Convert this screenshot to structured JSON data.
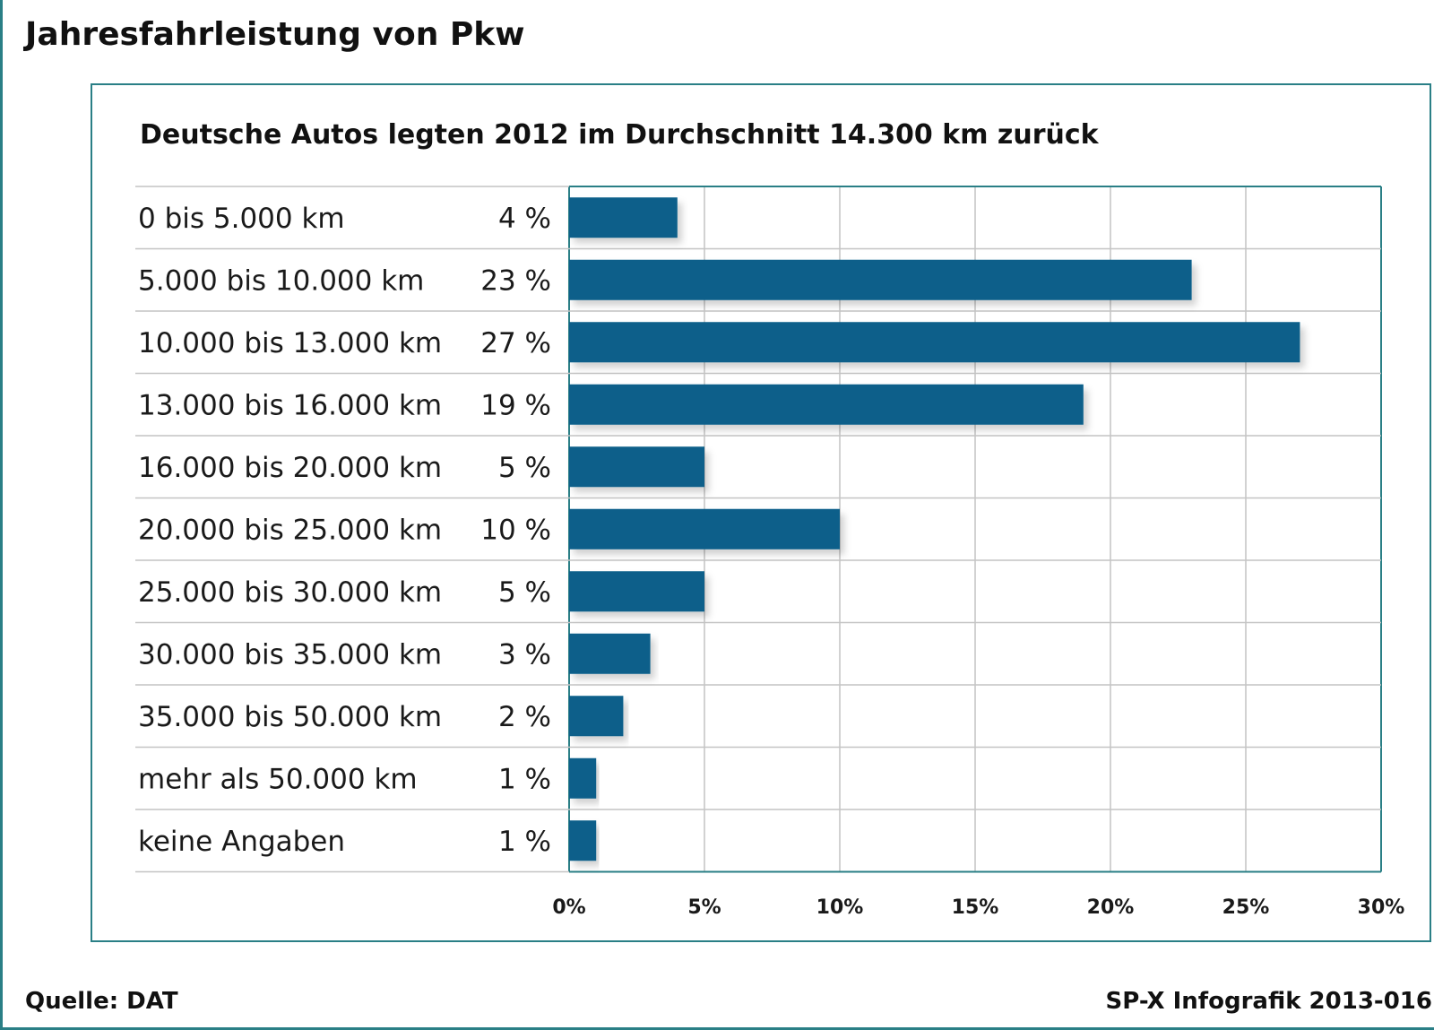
{
  "title": "Jahresfahrleistung von Pkw",
  "source": "Quelle: DAT",
  "credit": "SP-X Infografik 2013-016",
  "colors": {
    "bar": "#075e8a",
    "frame": "#2a7f86",
    "grid": "#c4c4c4"
  },
  "chart_data": {
    "type": "bar",
    "orientation": "horizontal",
    "title": "Deutsche Autos legten 2012 im Durchschnitt 14.300 km zurück",
    "categories": [
      "0 bis 5.000 km",
      "5.000 bis 10.000 km",
      "10.000 bis 13.000 km",
      "13.000 bis 16.000 km",
      "16.000 bis 20.000 km",
      "20.000 bis 25.000 km",
      "25.000 bis 30.000 km",
      "30.000 bis 35.000 km",
      "35.000 bis 50.000 km",
      "mehr als 50.000 km",
      "keine Angaben"
    ],
    "values": [
      4,
      23,
      27,
      19,
      5,
      10,
      5,
      3,
      2,
      1,
      1
    ],
    "value_labels": [
      "4 %",
      "23 %",
      "27 %",
      "19 %",
      "5 %",
      "10 %",
      "5 %",
      "3 %",
      "2 %",
      "1 %",
      "1 %"
    ],
    "xlim": [
      0,
      30
    ],
    "xticks": [
      0,
      5,
      10,
      15,
      20,
      25,
      30
    ],
    "xtick_labels": [
      "0%",
      "5%",
      "10%",
      "15%",
      "20%",
      "25%",
      "30%"
    ],
    "grid": true,
    "xlabel": "",
    "ylabel": ""
  }
}
